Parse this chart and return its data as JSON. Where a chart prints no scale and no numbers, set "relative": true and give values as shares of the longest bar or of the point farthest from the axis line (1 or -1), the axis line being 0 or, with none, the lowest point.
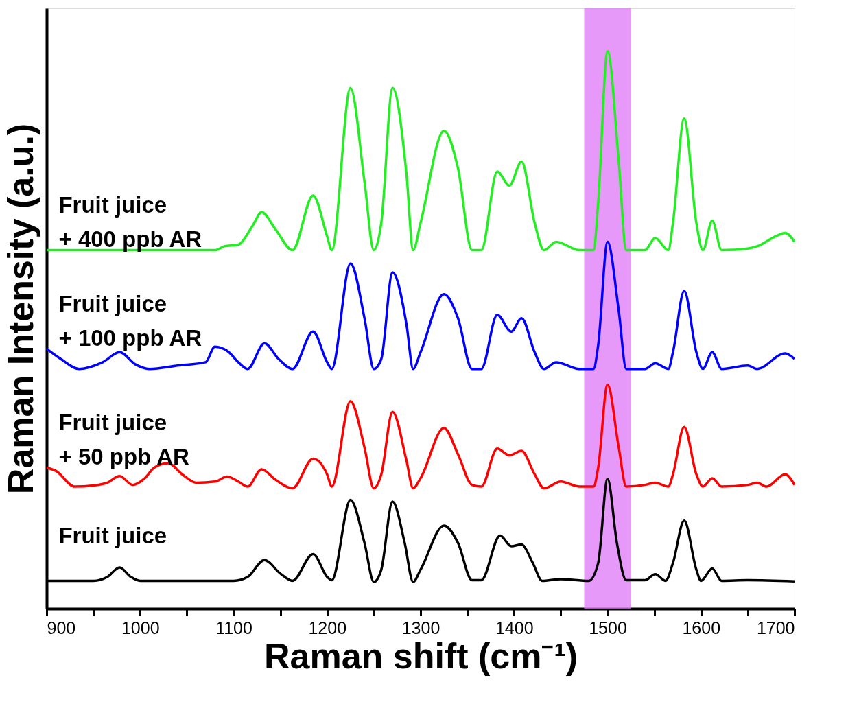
{
  "chart_data": {
    "type": "line",
    "relative": true,
    "xlabel": "Raman shift (cm⁻¹)",
    "ylabel": "Raman Intensity (a.u.)",
    "xlim": [
      900,
      1700
    ],
    "xticks": [
      900,
      {
        "value": 950,
        "label": null
      },
      1000,
      {
        "value": 1050,
        "label": null
      },
      1100,
      {
        "value": 1150,
        "label": null
      },
      1200,
      {
        "value": 1250,
        "label": null
      },
      1300,
      {
        "value": 1350,
        "label": null
      },
      1400,
      {
        "value": 1450,
        "label": null
      },
      1500,
      {
        "value": 1550,
        "label": null
      },
      1600,
      {
        "value": 1650,
        "label": null
      },
      1700
    ],
    "tick_labels": "x",
    "grid": false,
    "legend": false,
    "marker": "none",
    "line_style": "solid",
    "bands": [
      {
        "axis": "x",
        "from": 1475,
        "to": 1525,
        "color": "#dd77f5"
      }
    ],
    "series": [
      {
        "name": "Fruit juice",
        "color": "#000000",
        "x": [
          900,
          950,
          965,
          978,
          990,
          1000,
          1050,
          1100,
          1115,
          1133,
          1150,
          1163,
          1185,
          1200,
          1205,
          1225,
          1240,
          1250,
          1258,
          1270,
          1283,
          1292,
          1300,
          1325,
          1340,
          1355,
          1365,
          1385,
          1397,
          1408,
          1420,
          1430,
          1450,
          1480,
          1490,
          1500,
          1510,
          1520,
          1540,
          1551,
          1562,
          1570,
          1582,
          1595,
          1600,
          1612,
          1622,
          1650,
          1700
        ],
        "values": [
          0.05,
          0.05,
          0.057,
          0.074,
          0.057,
          0.05,
          0.05,
          0.05,
          0.057,
          0.087,
          0.063,
          0.05,
          0.098,
          0.057,
          0.051,
          0.195,
          0.118,
          0.048,
          0.07,
          0.192,
          0.118,
          0.048,
          0.07,
          0.149,
          0.118,
          0.051,
          0.051,
          0.131,
          0.112,
          0.115,
          0.082,
          0.05,
          0.053,
          0.05,
          0.082,
          0.233,
          0.118,
          0.051,
          0.051,
          0.062,
          0.05,
          0.082,
          0.158,
          0.07,
          0.05,
          0.072,
          0.05,
          0.051,
          0.049
        ]
      },
      {
        "name": "Fruit juice\n+ 50 ppb AR",
        "color": "#ff0000",
        "x": [
          900,
          910,
          930,
          950,
          965,
          978,
          992,
          1005,
          1015,
          1030,
          1045,
          1060,
          1080,
          1093,
          1105,
          1115,
          1130,
          1145,
          1163,
          1185,
          1200,
          1205,
          1225,
          1240,
          1250,
          1258,
          1270,
          1285,
          1292,
          1300,
          1325,
          1340,
          1355,
          1365,
          1382,
          1395,
          1408,
          1422,
          1432,
          1450,
          1470,
          1485,
          1490,
          1500,
          1512,
          1520,
          1540,
          1551,
          1565,
          1570,
          1582,
          1595,
          1602,
          1612,
          1622,
          1650,
          1660,
          1670,
          1690,
          1700
        ],
        "values": [
          0.253,
          0.247,
          0.219,
          0.221,
          0.226,
          0.238,
          0.222,
          0.234,
          0.253,
          0.261,
          0.241,
          0.226,
          0.228,
          0.237,
          0.228,
          0.219,
          0.25,
          0.231,
          0.216,
          0.269,
          0.241,
          0.219,
          0.372,
          0.289,
          0.216,
          0.241,
          0.353,
          0.265,
          0.216,
          0.234,
          0.324,
          0.277,
          0.222,
          0.219,
          0.287,
          0.275,
          0.283,
          0.241,
          0.216,
          0.228,
          0.219,
          0.219,
          0.253,
          0.402,
          0.289,
          0.219,
          0.222,
          0.226,
          0.219,
          0.241,
          0.326,
          0.241,
          0.219,
          0.234,
          0.219,
          0.222,
          0.226,
          0.219,
          0.241,
          0.222
        ]
      },
      {
        "name": "Fruit juice\n + 100 ppb AR",
        "color": "#0000ff",
        "x": [
          900,
          915,
          935,
          960,
          978,
          995,
          1010,
          1040,
          1070,
          1080,
          1095,
          1105,
          1115,
          1133,
          1148,
          1163,
          1185,
          1200,
          1205,
          1225,
          1240,
          1250,
          1258,
          1270,
          1285,
          1292,
          1300,
          1325,
          1340,
          1355,
          1365,
          1382,
          1397,
          1408,
          1422,
          1432,
          1445,
          1470,
          1485,
          1490,
          1500,
          1512,
          1520,
          1540,
          1551,
          1565,
          1570,
          1582,
          1595,
          1602,
          1612,
          1622,
          1650,
          1660,
          1690,
          1700
        ],
        "values": [
          0.466,
          0.448,
          0.43,
          0.442,
          0.46,
          0.438,
          0.43,
          0.436,
          0.442,
          0.47,
          0.46,
          0.442,
          0.43,
          0.476,
          0.448,
          0.43,
          0.497,
          0.442,
          0.43,
          0.619,
          0.521,
          0.43,
          0.448,
          0.603,
          0.509,
          0.43,
          0.46,
          0.564,
          0.521,
          0.43,
          0.43,
          0.527,
          0.497,
          0.521,
          0.46,
          0.43,
          0.442,
          0.43,
          0.43,
          0.473,
          0.658,
          0.534,
          0.43,
          0.43,
          0.44,
          0.43,
          0.46,
          0.57,
          0.46,
          0.43,
          0.46,
          0.43,
          0.436,
          0.43,
          0.458,
          0.448
        ]
      },
      {
        "name": "Fruit juice\n+ 400 ppb AR",
        "color": "#22ee22",
        "x": [
          900,
          1000,
          1080,
          1090,
          1105,
          1120,
          1130,
          1145,
          1163,
          1185,
          1200,
          1205,
          1225,
          1240,
          1250,
          1258,
          1270,
          1285,
          1292,
          1300,
          1325,
          1340,
          1355,
          1365,
          1382,
          1395,
          1408,
          1422,
          1432,
          1445,
          1470,
          1485,
          1490,
          1500,
          1512,
          1520,
          1540,
          1551,
          1565,
          1570,
          1582,
          1595,
          1602,
          1612,
          1622,
          1650,
          1660,
          1680,
          1690,
          1700
        ],
        "values": [
          0.643,
          0.643,
          0.643,
          0.65,
          0.653,
          0.686,
          0.711,
          0.68,
          0.643,
          0.741,
          0.668,
          0.643,
          0.934,
          0.766,
          0.643,
          0.692,
          0.934,
          0.778,
          0.643,
          0.692,
          0.857,
          0.79,
          0.643,
          0.643,
          0.784,
          0.759,
          0.802,
          0.692,
          0.643,
          0.658,
          0.643,
          0.643,
          0.729,
          1.0,
          0.802,
          0.643,
          0.643,
          0.665,
          0.643,
          0.692,
          0.879,
          0.692,
          0.643,
          0.696,
          0.643,
          0.646,
          0.65,
          0.668,
          0.674,
          0.658
        ]
      }
    ]
  }
}
